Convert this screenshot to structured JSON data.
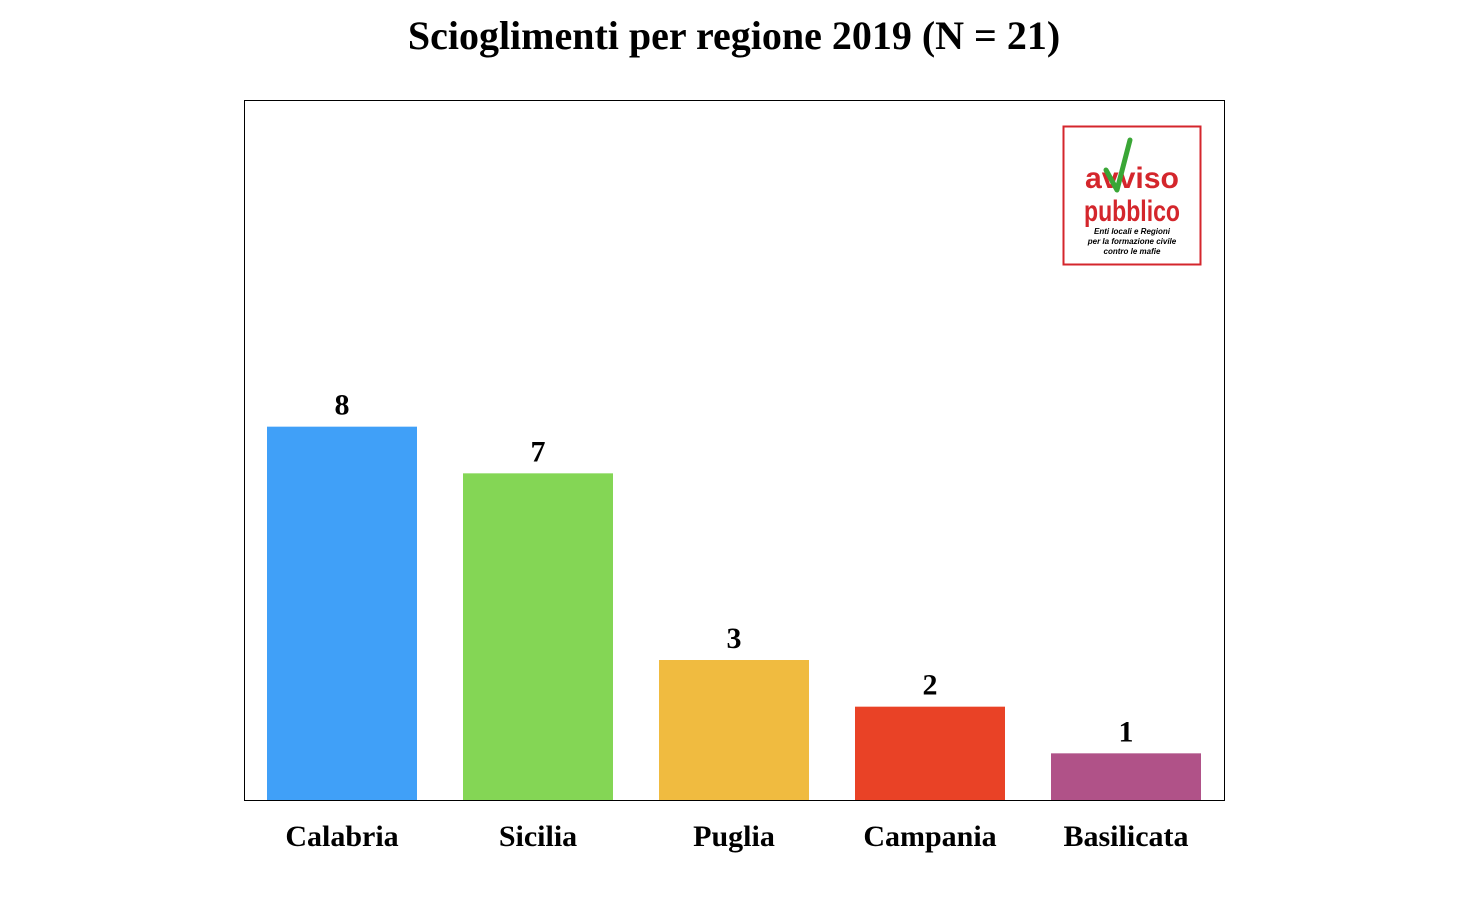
{
  "chart_data": {
    "type": "bar",
    "title": "Scioglimenti per regione 2019 (N = 21)",
    "xlabel": "",
    "ylabel": "",
    "categories": [
      "Calabria",
      "Sicilia",
      "Puglia",
      "Campania",
      "Basilicata"
    ],
    "values": [
      8,
      7,
      3,
      2,
      1
    ],
    "colors": [
      "#40a0f8",
      "#84d655",
      "#f0bb40",
      "#e94226",
      "#b05288"
    ],
    "ylim": [
      0,
      15
    ],
    "grid": false,
    "data_labels": true
  },
  "logo": {
    "line1": "avviso",
    "line2": "pubblico",
    "tagline1": "Enti locali e Regioni",
    "tagline2": "per la formazione civile",
    "tagline3": "contro le mafie",
    "brand_color": "#d4262c",
    "check_color": "#3aa636"
  }
}
